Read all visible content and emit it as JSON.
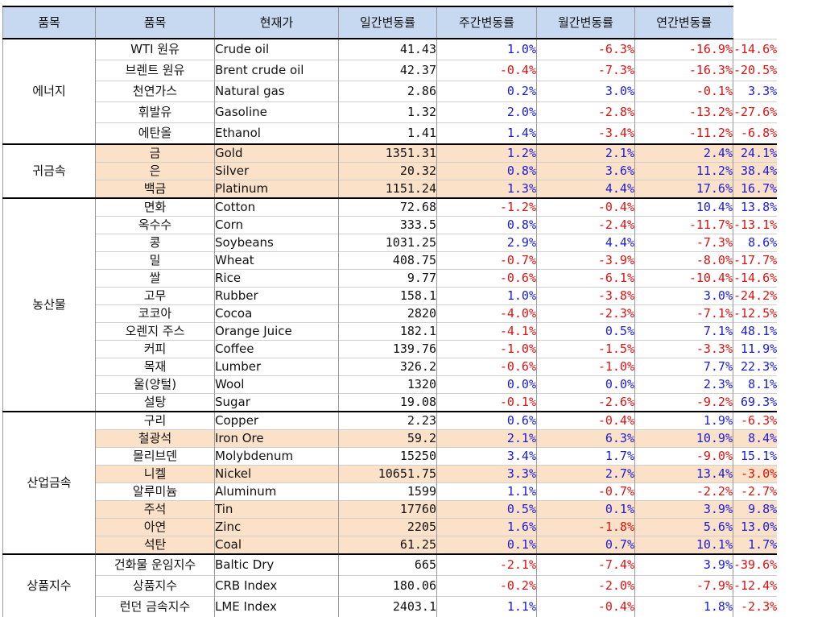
{
  "headers": [
    "품목",
    "품목",
    "현재가",
    "일간변동률",
    "주간변동률",
    "월간변동률",
    "연간변동률"
  ],
  "groups": [
    {
      "category": "에너지",
      "rows": [
        {
          "ko": "WTI 원유",
          "en": "Crude oil",
          "price": "41.43",
          "d": "1.0%",
          "w": "-6.3%",
          "m": "-16.9%",
          "y": "-14.6%",
          "hl": false
        },
        {
          "ko": "브렌트 원유",
          "en": "Brent crude oil",
          "price": "42.37",
          "d": "-0.4%",
          "w": "-7.3%",
          "m": "-16.3%",
          "y": "-20.5%",
          "hl": false
        },
        {
          "ko": "천연가스",
          "en": "Natural gas",
          "price": "2.86",
          "d": "0.2%",
          "w": "3.0%",
          "m": "-0.1%",
          "y": "3.3%",
          "hl": false
        },
        {
          "ko": "휘발유",
          "en": "Gasoline",
          "price": "1.32",
          "d": "2.0%",
          "w": "-2.8%",
          "m": "-13.2%",
          "y": "-27.6%",
          "hl": false
        },
        {
          "ko": "에탄올",
          "en": "Ethanol",
          "price": "1.41",
          "d": "1.4%",
          "w": "-3.4%",
          "m": "-11.2%",
          "y": "-6.8%",
          "hl": false
        }
      ]
    },
    {
      "category": "귀금속",
      "rows": [
        {
          "ko": "금",
          "en": "Gold",
          "price": "1351.31",
          "d": "1.2%",
          "w": "2.1%",
          "m": "2.4%",
          "y": "24.1%",
          "hl": true
        },
        {
          "ko": "은",
          "en": "Silver",
          "price": "20.32",
          "d": "0.8%",
          "w": "3.6%",
          "m": "11.2%",
          "y": "38.4%",
          "hl": true
        },
        {
          "ko": "백금",
          "en": "Platinum",
          "price": "1151.24",
          "d": "1.3%",
          "w": "4.4%",
          "m": "17.6%",
          "y": "16.7%",
          "hl": true
        }
      ]
    },
    {
      "category": "농산물",
      "rows": [
        {
          "ko": "면화",
          "en": "Cotton",
          "price": "72.68",
          "d": "-1.2%",
          "w": "-0.4%",
          "m": "10.4%",
          "y": "13.8%",
          "hl": false
        },
        {
          "ko": "옥수수",
          "en": "Corn",
          "price": "333.5",
          "d": "0.8%",
          "w": "-2.4%",
          "m": "-11.7%",
          "y": "-13.1%",
          "hl": false
        },
        {
          "ko": "콩",
          "en": "Soybeans",
          "price": "1031.25",
          "d": "2.9%",
          "w": "4.4%",
          "m": "-7.3%",
          "y": "8.6%",
          "hl": false
        },
        {
          "ko": "밀",
          "en": "Wheat",
          "price": "408.75",
          "d": "-0.7%",
          "w": "-3.9%",
          "m": "-8.0%",
          "y": "-17.7%",
          "hl": false
        },
        {
          "ko": "쌀",
          "en": "Rice",
          "price": "9.77",
          "d": "-0.6%",
          "w": "-6.1%",
          "m": "-10.4%",
          "y": "-14.6%",
          "hl": false
        },
        {
          "ko": "고무",
          "en": "Rubber",
          "price": "158.1",
          "d": "1.0%",
          "w": "-3.8%",
          "m": "3.0%",
          "y": "-24.2%",
          "hl": false
        },
        {
          "ko": "코코아",
          "en": "Cocoa",
          "price": "2820",
          "d": "-4.0%",
          "w": "-2.3%",
          "m": "-7.1%",
          "y": "-12.5%",
          "hl": false
        },
        {
          "ko": "오렌지 주스",
          "en": "Orange Juice",
          "price": "182.1",
          "d": "-4.1%",
          "w": "0.5%",
          "m": "7.1%",
          "y": "48.1%",
          "hl": false
        },
        {
          "ko": "커피",
          "en": "Coffee",
          "price": "139.76",
          "d": "-1.0%",
          "w": "-1.5%",
          "m": "-3.3%",
          "y": "11.9%",
          "hl": false
        },
        {
          "ko": "목재",
          "en": "Lumber",
          "price": "326.2",
          "d": "-0.6%",
          "w": "-1.0%",
          "m": "7.7%",
          "y": "22.3%",
          "hl": false
        },
        {
          "ko": "울(양털)",
          "en": "Wool",
          "price": "1320",
          "d": "0.0%",
          "w": "0.0%",
          "m": "2.3%",
          "y": "8.1%",
          "hl": false
        },
        {
          "ko": "설탕",
          "en": "Sugar",
          "price": "19.08",
          "d": "-0.1%",
          "w": "-2.6%",
          "m": "-9.2%",
          "y": "69.3%",
          "hl": false
        }
      ]
    },
    {
      "category": "산업금속",
      "rows": [
        {
          "ko": "구리",
          "en": "Copper",
          "price": "2.23",
          "d": "0.6%",
          "w": "-0.4%",
          "m": "1.9%",
          "y": "-6.3%",
          "hl": false
        },
        {
          "ko": "철광석",
          "en": "Iron Ore",
          "price": "59.2",
          "d": "2.1%",
          "w": "6.3%",
          "m": "10.9%",
          "y": "8.4%",
          "hl": true
        },
        {
          "ko": "몰리브덴",
          "en": "Molybdenum",
          "price": "15250",
          "d": "3.4%",
          "w": "1.7%",
          "m": "-9.0%",
          "y": "15.1%",
          "hl": false
        },
        {
          "ko": "니켈",
          "en": "Nickel",
          "price": "10651.75",
          "d": "3.3%",
          "w": "2.7%",
          "m": "13.4%",
          "y": "-3.0%",
          "hl": true
        },
        {
          "ko": "알루미늄",
          "en": "Aluminum",
          "price": "1599",
          "d": "1.1%",
          "w": "-0.7%",
          "m": "-2.2%",
          "y": "-2.7%",
          "hl": false
        },
        {
          "ko": "주석",
          "en": "Tin",
          "price": "17760",
          "d": "0.5%",
          "w": "0.1%",
          "m": "3.9%",
          "y": "9.8%",
          "hl": true
        },
        {
          "ko": "아연",
          "en": "Zinc",
          "price": "2205",
          "d": "1.6%",
          "w": "-1.8%",
          "m": "5.6%",
          "y": "13.0%",
          "hl": true
        },
        {
          "ko": "석탄",
          "en": "Coal",
          "price": "61.25",
          "d": "0.1%",
          "w": "0.7%",
          "m": "10.1%",
          "y": "1.7%",
          "hl": true
        }
      ]
    },
    {
      "category": "상품지수",
      "rows": [
        {
          "ko": "건화물 운임지수",
          "en": "Baltic Dry",
          "price": "665",
          "d": "-2.1%",
          "w": "-7.4%",
          "m": "3.9%",
          "y": "-39.6%",
          "hl": false
        },
        {
          "ko": "상품지수",
          "en": "CRB Index",
          "price": "180.06",
          "d": "-0.2%",
          "w": "-2.0%",
          "m": "-7.9%",
          "y": "-12.4%",
          "hl": false
        },
        {
          "ko": "런던 금속지수",
          "en": "LME Index",
          "price": "2403.1",
          "d": "1.1%",
          "w": "-0.4%",
          "m": "1.8%",
          "y": "-2.3%",
          "hl": false
        }
      ]
    }
  ]
}
